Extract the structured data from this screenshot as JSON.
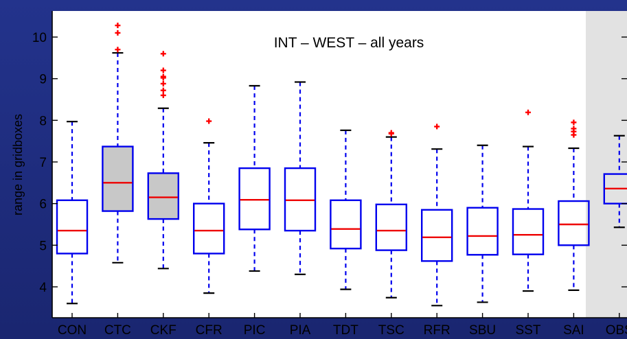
{
  "chart_data": {
    "type": "box",
    "title": "INT – WEST – all years",
    "xlabel": "",
    "ylabel": "range in gridboxes",
    "ylim": [
      3.3,
      10.5
    ],
    "yticks": [
      4,
      5,
      6,
      7,
      8,
      9,
      10
    ],
    "grid": false,
    "legend": "none",
    "colors": {
      "box": "#0000ee",
      "median": "#ee0000",
      "whisker": "#0000ee",
      "whisker_cap": "#000000",
      "outlier": "#ff0000",
      "shaded_fill": "#c8c8c8",
      "obs_panel": "#e2e2e2",
      "slide_background": "#1f2e80"
    },
    "categories": [
      "CON",
      "CTC",
      "CKF",
      "CFR",
      "PIC",
      "PIA",
      "TDT",
      "TSC",
      "RFR",
      "SBU",
      "SST",
      "SAI",
      "OBS"
    ],
    "boxes": [
      {
        "label": "CON",
        "whisker_low": 3.6,
        "q1": 4.8,
        "median": 5.35,
        "q3": 6.08,
        "whisker_high": 7.97,
        "outliers": [],
        "shaded": false
      },
      {
        "label": "CTC",
        "whisker_low": 4.58,
        "q1": 5.82,
        "median": 6.5,
        "q3": 7.37,
        "whisker_high": 9.62,
        "outliers": [
          9.7,
          10.1,
          10.28
        ],
        "shaded": true
      },
      {
        "label": "CKF",
        "whisker_low": 4.44,
        "q1": 5.63,
        "median": 6.15,
        "q3": 6.73,
        "whisker_high": 8.29,
        "outliers": [
          8.6,
          8.72,
          8.88,
          9.02,
          9.05,
          9.2,
          9.6
        ],
        "shaded": true
      },
      {
        "label": "CFR",
        "whisker_low": 3.85,
        "q1": 4.8,
        "median": 5.35,
        "q3": 6.0,
        "whisker_high": 7.46,
        "outliers": [
          7.98
        ],
        "shaded": false
      },
      {
        "label": "PIC",
        "whisker_low": 4.38,
        "q1": 5.38,
        "median": 6.09,
        "q3": 6.85,
        "whisker_high": 8.83,
        "outliers": [],
        "shaded": false
      },
      {
        "label": "PIA",
        "whisker_low": 4.3,
        "q1": 5.35,
        "median": 6.08,
        "q3": 6.85,
        "whisker_high": 8.92,
        "outliers": [],
        "shaded": false
      },
      {
        "label": "TDT",
        "whisker_low": 3.94,
        "q1": 4.92,
        "median": 5.39,
        "q3": 6.08,
        "whisker_high": 7.76,
        "outliers": [],
        "shaded": false
      },
      {
        "label": "TSC",
        "whisker_low": 3.74,
        "q1": 4.88,
        "median": 5.35,
        "q3": 5.98,
        "whisker_high": 7.6,
        "outliers": [
          7.68,
          7.7
        ],
        "shaded": false
      },
      {
        "label": "RFR",
        "whisker_low": 3.55,
        "q1": 4.62,
        "median": 5.19,
        "q3": 5.85,
        "whisker_high": 7.31,
        "outliers": [
          7.85
        ],
        "shaded": false
      },
      {
        "label": "SBU",
        "whisker_low": 3.63,
        "q1": 4.77,
        "median": 5.22,
        "q3": 5.9,
        "whisker_high": 7.4,
        "outliers": [],
        "shaded": false
      },
      {
        "label": "SST",
        "whisker_low": 3.9,
        "q1": 4.78,
        "median": 5.25,
        "q3": 5.87,
        "whisker_high": 7.37,
        "outliers": [
          8.19
        ],
        "shaded": false
      },
      {
        "label": "SAI",
        "whisker_low": 3.92,
        "q1": 5.0,
        "median": 5.5,
        "q3": 6.06,
        "whisker_high": 7.33,
        "outliers": [
          7.65,
          7.73,
          7.8,
          7.95
        ],
        "shaded": false
      },
      {
        "label": "OBS",
        "whisker_low": 5.43,
        "q1": 6.0,
        "median": 6.36,
        "q3": 6.71,
        "whisker_high": 7.63,
        "outliers": [],
        "shaded": false
      }
    ]
  }
}
